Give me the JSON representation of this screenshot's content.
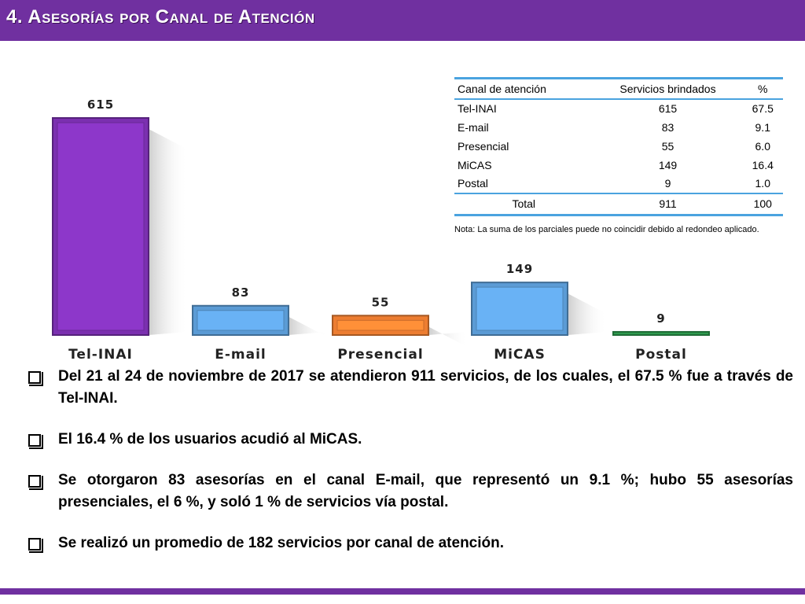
{
  "title": "4. Asesorías por Canal de Atención",
  "colors": {
    "accent": "#7030a0",
    "tel_inai": "#7b30b0",
    "email": "#5b9bd5",
    "presencial": "#ed7d31",
    "micas": "#5b9bd5",
    "postal": "#2e9b4e",
    "table_rule": "#4aa3df"
  },
  "chart_data": {
    "type": "bar",
    "categories": [
      "Tel-INAI",
      "E-mail",
      "Presencial",
      "MiCAS",
      "Postal"
    ],
    "values": [
      615,
      83,
      55,
      149,
      9
    ],
    "data_labels": [
      "615",
      "83",
      "55",
      "149",
      "9"
    ],
    "colors": [
      "#7b30b0",
      "#5b9bd5",
      "#ed7d31",
      "#5b9bd5",
      "#2e9b4e"
    ],
    "ylim": [
      0,
      615
    ],
    "grid": false,
    "legend": "none"
  },
  "table": {
    "headers": [
      "Canal de atención",
      "Servicios brindados",
      "%"
    ],
    "rows": [
      [
        "Tel-INAI",
        "615",
        "67.5"
      ],
      [
        "E-mail",
        "83",
        "9.1"
      ],
      [
        "Presencial",
        "55",
        "6.0"
      ],
      [
        "MiCAS",
        "149",
        "16.4"
      ],
      [
        "Postal",
        "9",
        "1.0"
      ]
    ],
    "total": [
      "Total",
      "911",
      "100"
    ]
  },
  "note": "Nota: La suma de los parciales puede no coincidir debido al redondeo aplicado.",
  "bullets": [
    "Del 21 al 24 de noviembre de 2017 se atendieron 911 servicios, de los cuales, el 67.5 % fue a través de Tel-INAI.",
    "El 16.4 % de los usuarios acudió al MiCAS.",
    "Se otorgaron 83 asesorías en el canal E-mail, que representó un 9.1 %; hubo 55 asesorías presenciales, el 6 %, y soló 1 % de servicios vía postal.",
    "Se realizó un promedio de 182 servicios por canal de atención."
  ]
}
